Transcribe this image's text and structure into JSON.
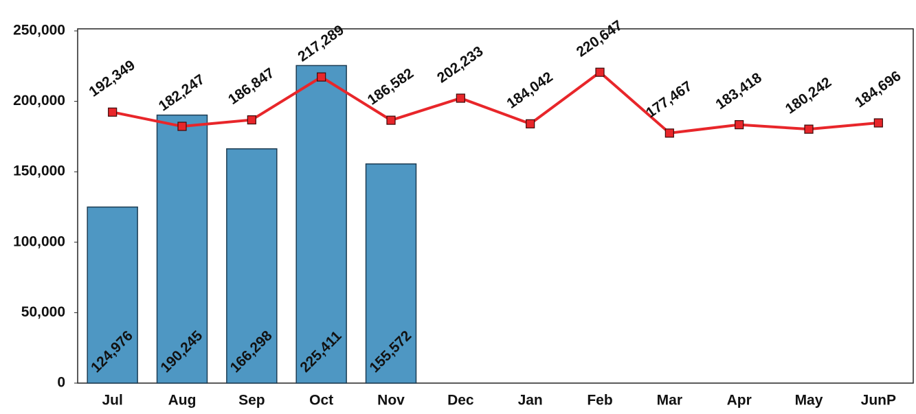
{
  "chart_data": {
    "type": "combo",
    "categories": [
      "Jul",
      "Aug",
      "Sep",
      "Oct",
      "Nov",
      "Dec",
      "Jan",
      "Feb",
      "Mar",
      "Apr",
      "May",
      "JunP"
    ],
    "series": [
      {
        "type": "bar",
        "color": "#4e97c3",
        "values": [
          124976,
          190245,
          166298,
          225411,
          155572,
          null,
          null,
          null,
          null,
          null,
          null,
          null
        ],
        "value_labels": [
          "124,976",
          "190,245",
          "166,298",
          "225,411",
          "155,572",
          null,
          null,
          null,
          null,
          null,
          null,
          null
        ]
      },
      {
        "type": "line",
        "color": "#e8262a",
        "values": [
          192349,
          182247,
          186847,
          217289,
          186582,
          202233,
          184042,
          220647,
          177467,
          183418,
          180242,
          184696
        ],
        "value_labels": [
          "192,349",
          "182,247",
          "186,847",
          "217,289",
          "186,582",
          "202,233",
          "184,042",
          "220,647",
          "177,467",
          "183,418",
          "180,242",
          "184,696"
        ]
      }
    ],
    "ylim": [
      0,
      250000
    ],
    "yticks": [
      0,
      {
        "value": 50000,
        "label": "50,000"
      },
      {
        "value": 100000,
        "label": "100,000"
      },
      {
        "value": 150000,
        "label": "150,000"
      },
      {
        "value": 200000,
        "label": "200,000"
      },
      {
        "value": 250000,
        "label": "250,000"
      }
    ],
    "grid": false
  }
}
